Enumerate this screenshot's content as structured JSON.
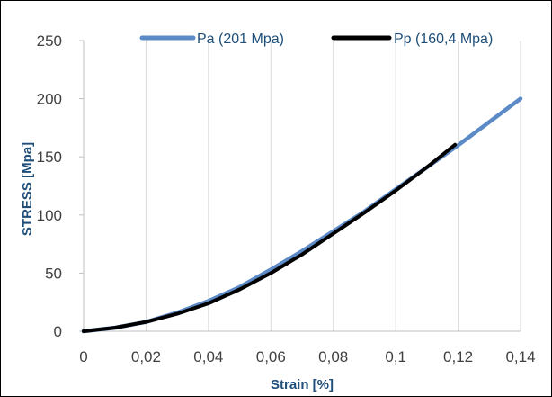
{
  "chart_data": {
    "type": "line",
    "title": "",
    "xlabel": "Strain [%]",
    "ylabel": "STRESS [Mpa]",
    "xlim": [
      0,
      0.14
    ],
    "ylim": [
      0,
      250
    ],
    "x_ticks": [
      "0",
      "0,02",
      "0,04",
      "0,06",
      "0,08",
      "0,1",
      "0,12",
      "0,14"
    ],
    "x_tick_values": [
      0,
      0.02,
      0.04,
      0.06,
      0.08,
      0.1,
      0.12,
      0.14
    ],
    "y_ticks": [
      "0",
      "50",
      "100",
      "150",
      "200",
      "250"
    ],
    "y_tick_values": [
      0,
      50,
      100,
      150,
      200,
      250
    ],
    "grid": {
      "vertical": true,
      "horizontal": false
    },
    "legend_position": "top",
    "series": [
      {
        "name": "Pa (201 Mpa)",
        "color": "#5b8ac7",
        "x": [
          0,
          0.01,
          0.02,
          0.03,
          0.04,
          0.05,
          0.06,
          0.07,
          0.08,
          0.09,
          0.1,
          0.11,
          0.12,
          0.13,
          0.14
        ],
        "y": [
          0,
          3,
          8,
          16,
          26,
          38,
          53,
          69,
          86,
          103,
          122,
          141,
          160,
          180,
          200
        ]
      },
      {
        "name": "Pp (160,4 Mpa)",
        "color": "#000000",
        "x": [
          0,
          0.01,
          0.02,
          0.03,
          0.04,
          0.05,
          0.06,
          0.07,
          0.08,
          0.09,
          0.1,
          0.11,
          0.119
        ],
        "y": [
          0,
          3,
          8,
          15,
          24,
          36,
          50,
          66,
          84,
          102,
          121,
          141,
          160.4
        ]
      }
    ]
  }
}
